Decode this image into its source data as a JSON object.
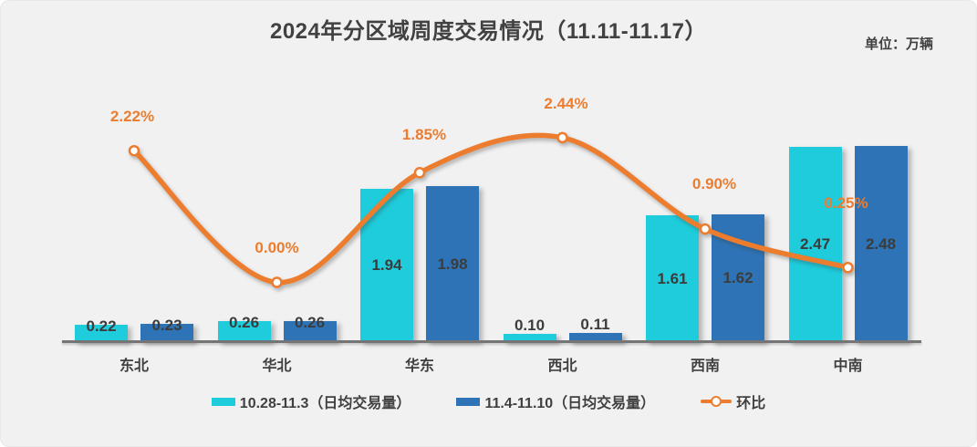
{
  "card": {
    "title": "2024年分区域周度交易情况（11.11-11.17）",
    "unit_label": "单位：万辆"
  },
  "legend": {
    "items": [
      {
        "label": "10.28-11.3（日均交易量）",
        "swatch": "cyan-bar"
      },
      {
        "label": "11.4-11.10（日均交易量）",
        "swatch": "blue-bar"
      },
      {
        "label": "环比",
        "swatch": "orange-line"
      }
    ]
  },
  "colors": {
    "series1": "#1ECCDC",
    "series2": "#2E73B5",
    "line": "#EC7D2E",
    "background": "#F1F1F2",
    "axis": "#757575",
    "value_text": "#3C3C3C",
    "title_text": "#414141"
  },
  "chart_data": {
    "type": "bar",
    "subtype": "grouped-bar-with-line",
    "title": "2024年分区域周度交易情况（11.11-11.17）",
    "unit": "万辆",
    "categories": [
      "东北",
      "华北",
      "华东",
      "西北",
      "西南",
      "中南"
    ],
    "series": [
      {
        "name": "10.28-11.3（日均交易量）",
        "chart_type": "bar",
        "color": "#1ECCDC",
        "values": [
          0.22,
          0.26,
          1.94,
          0.1,
          1.61,
          2.47
        ],
        "value_labels": [
          "0.22",
          "0.26",
          "1.94",
          "0.10",
          "1.61",
          "2.47"
        ]
      },
      {
        "name": "11.4-11.10（日均交易量）",
        "chart_type": "bar",
        "color": "#2E73B5",
        "values": [
          0.23,
          0.26,
          1.98,
          0.11,
          1.62,
          2.48
        ],
        "value_labels": [
          "0.23",
          "0.26",
          "1.98",
          "0.11",
          "1.62",
          "2.48"
        ]
      },
      {
        "name": "环比",
        "chart_type": "line",
        "color": "#EC7D2E",
        "values": [
          2.22,
          0.0,
          1.85,
          2.44,
          0.9,
          0.25
        ],
        "value_labels": [
          "2.22%",
          "0.00%",
          "1.85%",
          "2.44%",
          "0.90%",
          "0.25%"
        ]
      }
    ],
    "value_axis_visible": false,
    "grid": false,
    "legend_position": "bottom"
  }
}
